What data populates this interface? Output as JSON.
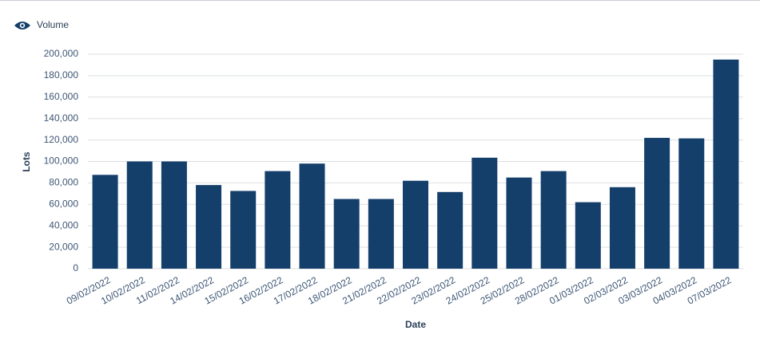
{
  "chart_data": {
    "type": "bar",
    "x_label": "Date",
    "y_label": "Lots",
    "categories": [
      "09/02/2022",
      "10/02/2022",
      "11/02/2022",
      "14/02/2022",
      "15/02/2022",
      "16/02/2022",
      "17/02/2022",
      "18/02/2022",
      "21/02/2022",
      "22/02/2022",
      "23/02/2022",
      "24/02/2022",
      "25/02/2022",
      "28/02/2022",
      "01/03/2022",
      "02/03/2022",
      "03/03/2022",
      "04/03/2022",
      "07/03/2022"
    ],
    "series": [
      {
        "name": "Volume",
        "color": "#143f6b",
        "values": [
          87500,
          100000,
          100000,
          78000,
          72500,
          91000,
          98000,
          65000,
          65000,
          82000,
          71500,
          103500,
          85000,
          91000,
          62000,
          76000,
          122000,
          121500,
          195000
        ]
      }
    ],
    "ylim": [
      0,
      200000
    ],
    "yticks": [
      0,
      {
        "value": 20000,
        "label": "20,000"
      },
      {
        "value": 40000,
        "label": "40,000"
      },
      {
        "value": 60000,
        "label": "60,000"
      },
      {
        "value": 80000,
        "label": "80,000"
      },
      {
        "value": 100000,
        "label": "100,000"
      },
      {
        "value": 120000,
        "label": "120,000"
      },
      {
        "value": 140000,
        "label": "140,000"
      },
      {
        "value": 160000,
        "label": "160,000"
      },
      {
        "value": 180000,
        "label": "180,000"
      },
      {
        "value": 200000,
        "label": "200,000"
      }
    ],
    "grid": true
  }
}
